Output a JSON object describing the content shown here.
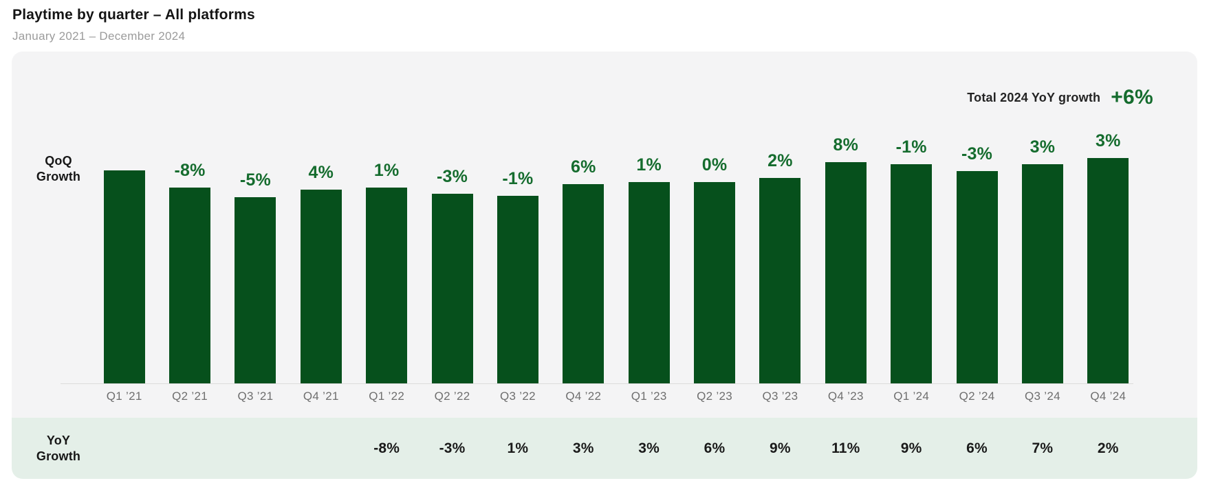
{
  "header": {
    "title": "Playtime by quarter – All platforms",
    "subtitle": "January 2021 – December 2024"
  },
  "summary": {
    "label": "Total 2024 YoY growth",
    "value": "+6%"
  },
  "axis_labels": {
    "qoq_line1": "QoQ",
    "qoq_line2": "Growth",
    "yoy_line1": "YoY",
    "yoy_line2": "Growth"
  },
  "colors": {
    "bar": "#06501C",
    "green_text": "#156C2E",
    "panel_bg": "#F4F4F5",
    "yoy_bg": "#E4EFE8",
    "tick_text": "#6E6E6E"
  },
  "chart_data": {
    "type": "bar",
    "title": "Playtime by quarter – All platforms",
    "subtitle": "January 2021 – December 2024",
    "categories": [
      "Q1 ’21",
      "Q2 ’21",
      "Q3 ’21",
      "Q4 ’21",
      "Q1 ’22",
      "Q2 ’22",
      "Q3 ’22",
      "Q4 ’22",
      "Q1 ’23",
      "Q2 ’23",
      "Q3 ’23",
      "Q4 ’23",
      "Q1 ’24",
      "Q2 ’24",
      "Q3 ’24",
      "Q4 ’24"
    ],
    "series": [
      {
        "name": "QoQ Growth",
        "unit": "%",
        "values": [
          null,
          -8,
          -5,
          4,
          1,
          -3,
          -1,
          6,
          1,
          0,
          2,
          8,
          -1,
          -3,
          3,
          3
        ]
      },
      {
        "name": "YoY Growth",
        "unit": "%",
        "values": [
          null,
          null,
          null,
          null,
          -8,
          -3,
          1,
          3,
          3,
          6,
          9,
          11,
          9,
          6,
          7,
          2
        ]
      }
    ],
    "bar_relative_heights": [
      100,
      92,
      87.4,
      90.9,
      91.8,
      89.1,
      88.2,
      93.5,
      94.4,
      94.4,
      96.3,
      104,
      102.9,
      99.8,
      102.8,
      105.9
    ],
    "total_2024_yoy": "+6%",
    "legend_position": "none",
    "grid": false
  }
}
